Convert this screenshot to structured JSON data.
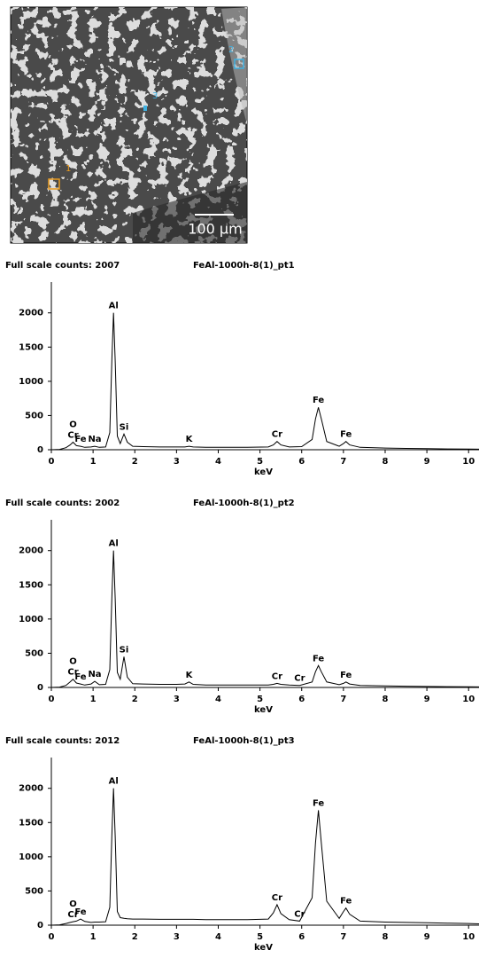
{
  "image": {
    "markers": [
      "1",
      "2",
      "3"
    ],
    "scale_bar": "100 µm"
  },
  "chart_data": [
    {
      "type": "line",
      "subtitle": "Full scale counts: 2007",
      "title": "FeAl-1000h-8(1)_pt1",
      "x_label": "keV",
      "color": "#000000",
      "xlim": [
        0,
        10.25
      ],
      "ylim": [
        0,
        2450
      ],
      "xticks": [
        0,
        1,
        2,
        3,
        4,
        5,
        6,
        7,
        8,
        9,
        10
      ],
      "yticks": [
        0,
        500,
        1000,
        1500,
        2000
      ],
      "x": [
        0,
        0.2,
        0.35,
        0.45,
        0.52,
        0.6,
        0.7,
        0.8,
        0.95,
        1.04,
        1.15,
        1.3,
        1.4,
        1.45,
        1.49,
        1.53,
        1.58,
        1.65,
        1.74,
        1.82,
        1.95,
        2.2,
        2.6,
        3.0,
        3.2,
        3.3,
        3.4,
        3.7,
        4.2,
        4.7,
        5.2,
        5.32,
        5.41,
        5.5,
        5.7,
        6.0,
        6.25,
        6.33,
        6.4,
        6.47,
        6.6,
        6.9,
        7.0,
        7.06,
        7.15,
        7.4,
        8.0,
        8.5,
        9.0,
        9.5,
        10.0,
        10.25
      ],
      "values": [
        0,
        5,
        30,
        70,
        110,
        60,
        50,
        35,
        40,
        50,
        35,
        40,
        250,
        1300,
        2000,
        1300,
        200,
        90,
        230,
        110,
        50,
        45,
        40,
        40,
        40,
        50,
        40,
        35,
        35,
        35,
        40,
        70,
        120,
        70,
        40,
        45,
        150,
        450,
        620,
        450,
        120,
        50,
        90,
        120,
        70,
        35,
        25,
        20,
        15,
        12,
        10,
        8
      ],
      "annotations": [
        {
          "label": "O",
          "x": 0.52,
          "y": 110
        },
        {
          "label": "Cr",
          "x": 0.52,
          "y": 110
        },
        {
          "label": "Fe",
          "x": 0.7,
          "y": 50
        },
        {
          "label": "Na",
          "x": 1.04,
          "y": 50
        },
        {
          "label": "Al",
          "x": 1.49,
          "y": 2000
        },
        {
          "label": "Si",
          "x": 1.74,
          "y": 230
        },
        {
          "label": "K",
          "x": 3.3,
          "y": 50
        },
        {
          "label": "Cr",
          "x": 5.41,
          "y": 120
        },
        {
          "label": "Fe",
          "x": 6.4,
          "y": 620
        },
        {
          "label": "Fe",
          "x": 7.06,
          "y": 120
        }
      ]
    },
    {
      "type": "line",
      "subtitle": "Full scale counts: 2002",
      "title": "FeAl-1000h-8(1)_pt2",
      "x_label": "keV",
      "color": "#000000",
      "xlim": [
        0,
        10.25
      ],
      "ylim": [
        0,
        2450
      ],
      "xticks": [
        0,
        1,
        2,
        3,
        4,
        5,
        6,
        7,
        8,
        9,
        10
      ],
      "yticks": [
        0,
        500,
        1000,
        1500,
        2000
      ],
      "x": [
        0,
        0.2,
        0.35,
        0.45,
        0.52,
        0.6,
        0.7,
        0.8,
        0.95,
        1.04,
        1.15,
        1.3,
        1.4,
        1.45,
        1.49,
        1.53,
        1.58,
        1.65,
        1.74,
        1.82,
        1.95,
        2.2,
        2.6,
        3.0,
        3.2,
        3.3,
        3.4,
        3.7,
        4.2,
        4.7,
        5.2,
        5.32,
        5.41,
        5.5,
        5.7,
        5.95,
        6.25,
        6.33,
        6.4,
        6.47,
        6.6,
        6.9,
        7.0,
        7.06,
        7.15,
        7.4,
        8.0,
        8.5,
        9.0,
        9.5,
        10.0,
        10.25
      ],
      "values": [
        0,
        5,
        30,
        80,
        120,
        65,
        50,
        35,
        50,
        90,
        40,
        45,
        260,
        1300,
        2000,
        1300,
        220,
        120,
        450,
        150,
        55,
        50,
        45,
        45,
        50,
        80,
        45,
        35,
        35,
        35,
        35,
        45,
        60,
        45,
        35,
        30,
        80,
        230,
        320,
        230,
        80,
        40,
        60,
        80,
        50,
        30,
        22,
        18,
        14,
        12,
        10,
        8
      ],
      "annotations": [
        {
          "label": "O",
          "x": 0.52,
          "y": 120
        },
        {
          "label": "Cr",
          "x": 0.52,
          "y": 120
        },
        {
          "label": "Fe",
          "x": 0.7,
          "y": 50
        },
        {
          "label": "Na",
          "x": 1.04,
          "y": 90
        },
        {
          "label": "Al",
          "x": 1.49,
          "y": 2000
        },
        {
          "label": "Si",
          "x": 1.74,
          "y": 450
        },
        {
          "label": "K",
          "x": 3.3,
          "y": 80
        },
        {
          "label": "Cr",
          "x": 5.41,
          "y": 60
        },
        {
          "label": "Cr",
          "x": 5.95,
          "y": 30
        },
        {
          "label": "Fe",
          "x": 6.4,
          "y": 320
        },
        {
          "label": "Fe",
          "x": 7.06,
          "y": 80
        }
      ]
    },
    {
      "type": "line",
      "subtitle": "Full scale counts: 2012",
      "title": "FeAl-1000h-8(1)_pt3",
      "x_label": "keV",
      "color": "#000000",
      "xlim": [
        0,
        10.25
      ],
      "ylim": [
        0,
        2450
      ],
      "xticks": [
        0,
        1,
        2,
        3,
        4,
        5,
        6,
        7,
        8,
        9,
        10
      ],
      "yticks": [
        0,
        500,
        1000,
        1500,
        2000
      ],
      "x": [
        0,
        0.2,
        0.35,
        0.45,
        0.52,
        0.6,
        0.7,
        0.8,
        0.95,
        1.04,
        1.15,
        1.3,
        1.4,
        1.45,
        1.49,
        1.53,
        1.58,
        1.65,
        1.74,
        1.82,
        1.95,
        2.2,
        2.6,
        3.0,
        3.2,
        3.3,
        3.4,
        3.7,
        4.2,
        4.7,
        5.2,
        5.32,
        5.41,
        5.5,
        5.7,
        5.95,
        6.25,
        6.33,
        6.4,
        6.47,
        6.6,
        6.9,
        7.0,
        7.06,
        7.15,
        7.4,
        8.0,
        8.5,
        9.0,
        9.5,
        10.0,
        10.25
      ],
      "values": [
        0,
        5,
        25,
        40,
        50,
        60,
        90,
        55,
        40,
        45,
        45,
        50,
        260,
        1300,
        2000,
        1300,
        200,
        110,
        100,
        95,
        90,
        90,
        85,
        85,
        85,
        85,
        85,
        80,
        80,
        80,
        90,
        180,
        300,
        170,
        80,
        60,
        400,
        1200,
        1680,
        1200,
        350,
        100,
        200,
        250,
        160,
        60,
        45,
        40,
        35,
        30,
        25,
        20
      ],
      "annotations": [
        {
          "label": "O",
          "x": 0.52,
          "y": 50
        },
        {
          "label": "Cr",
          "x": 0.52,
          "y": 50
        },
        {
          "label": "Fe",
          "x": 0.7,
          "y": 90
        },
        {
          "label": "Al",
          "x": 1.49,
          "y": 2000
        },
        {
          "label": "Cr",
          "x": 5.41,
          "y": 300
        },
        {
          "label": "Cr",
          "x": 5.95,
          "y": 60
        },
        {
          "label": "Fe",
          "x": 6.4,
          "y": 1680
        },
        {
          "label": "Fe",
          "x": 7.06,
          "y": 250
        }
      ]
    }
  ]
}
